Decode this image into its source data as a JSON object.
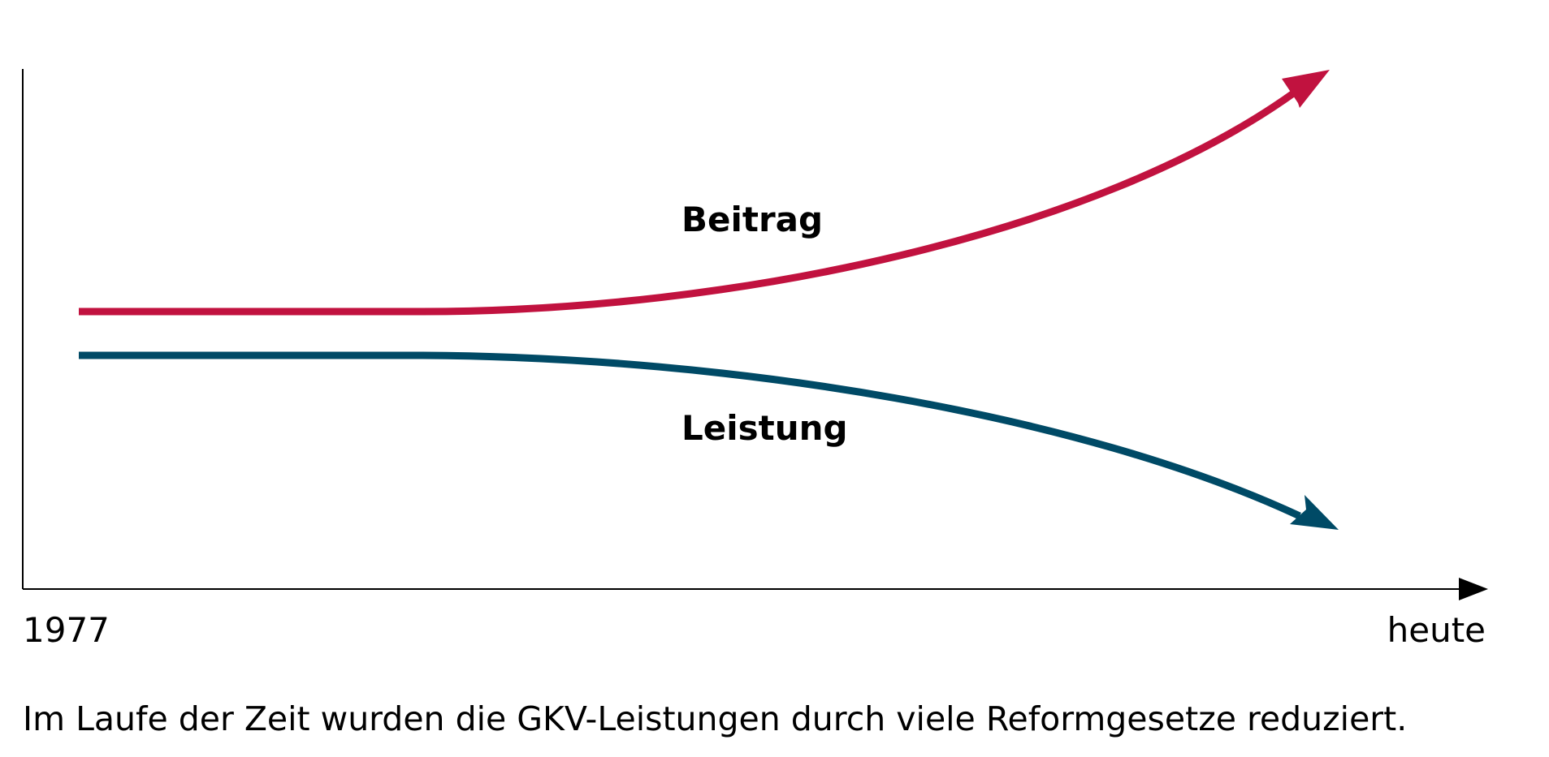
{
  "colors": {
    "beitrag": "#c1123f",
    "leistung": "#004a66",
    "axis": "#000000"
  },
  "series": [
    {
      "label": "Beitrag",
      "trend": "increasing"
    },
    {
      "label": "Leistung",
      "trend": "decreasing"
    }
  ],
  "axis": {
    "start_label": "1977",
    "end_label": "heute"
  },
  "caption": "Im Laufe der Zeit wurden die GKV-Leistungen durch viele Reformgesetze reduziert."
}
